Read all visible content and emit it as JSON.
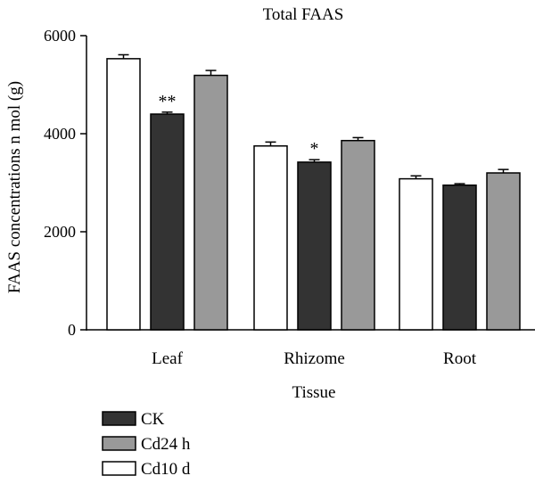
{
  "chart_data": {
    "type": "bar",
    "title": "Total FAAS",
    "xlabel": "Tissue",
    "ylabel": "FAAS concentrations n mol (g)",
    "categories": [
      "Leaf",
      "Rhizome",
      "Root"
    ],
    "ylim": [
      0,
      6000
    ],
    "yticks": [
      0,
      2000,
      4000,
      6000
    ],
    "grid": false,
    "legend_position": "bottom-left",
    "series": [
      {
        "name": "Cd10 d",
        "color": "#ffffff",
        "values": [
          5530,
          3750,
          3080
        ],
        "errors": [
          80,
          80,
          60
        ]
      },
      {
        "name": "CK",
        "color": "#333333",
        "values": [
          4400,
          3420,
          2950
        ],
        "errors": [
          40,
          50,
          30
        ]
      },
      {
        "name": "Cd24 h",
        "color": "#999999",
        "values": [
          5190,
          3860,
          3200
        ],
        "errors": [
          100,
          60,
          70
        ]
      }
    ],
    "bar_order": [
      "Cd10 d",
      "CK",
      "Cd24 h"
    ],
    "legend_order": [
      "CK",
      "Cd24 h",
      "Cd10 d"
    ],
    "annotations": [
      {
        "category": "Leaf",
        "series": "CK",
        "text": "**"
      },
      {
        "category": "Rhizome",
        "series": "CK",
        "text": "*"
      }
    ]
  }
}
